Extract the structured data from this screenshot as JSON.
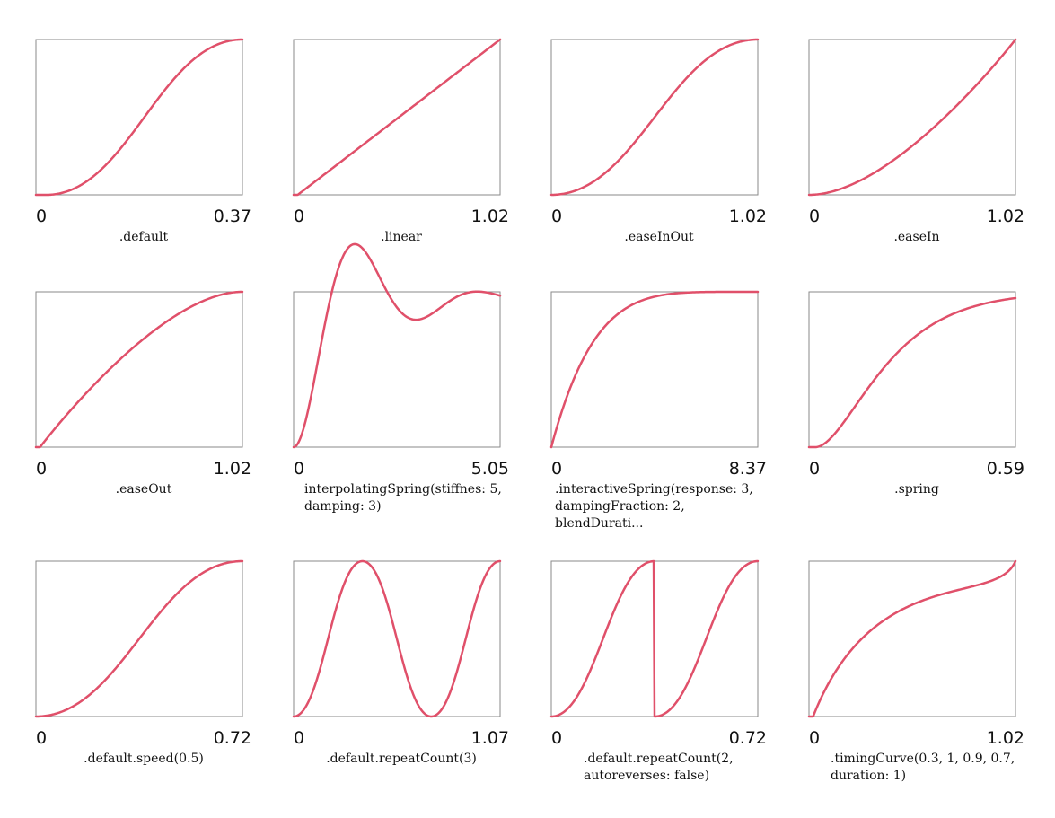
{
  "chart_data": [
    {
      "type": "line",
      "title": ".default",
      "x_min_label": "0",
      "x_max_label": "0.37",
      "curve": "default",
      "ylim": [
        0,
        1
      ]
    },
    {
      "type": "line",
      "title": ".linear",
      "x_min_label": "0",
      "x_max_label": "1.02",
      "curve": "linear",
      "ylim": [
        0,
        1
      ]
    },
    {
      "type": "line",
      "title": ".easeInOut",
      "x_min_label": "0",
      "x_max_label": "1.02",
      "curve": "easeInOut",
      "ylim": [
        0,
        1
      ]
    },
    {
      "type": "line",
      "title": ".easeIn",
      "x_min_label": "0",
      "x_max_label": "1.02",
      "curve": "easeIn",
      "ylim": [
        0,
        1
      ]
    },
    {
      "type": "line",
      "title": ".easeOut",
      "x_min_label": "0",
      "x_max_label": "1.02",
      "curve": "easeOut",
      "ylim": [
        0,
        1
      ]
    },
    {
      "type": "line",
      "title": "interpolatingSpring(stiffnes: 5, damping: 3)",
      "x_min_label": "0",
      "x_max_label": "5.05",
      "curve": "interpolatingSpring",
      "ylim": [
        0,
        1.05
      ]
    },
    {
      "type": "line",
      "title": ".interactiveSpring(response: 3, dampingFraction: 2, blendDurati...",
      "x_min_label": "0",
      "x_max_label": "8.37",
      "curve": "interactiveSpring",
      "ylim": [
        0,
        1
      ]
    },
    {
      "type": "line",
      "title": ".spring",
      "x_min_label": "0",
      "x_max_label": "0.59",
      "curve": "spring",
      "ylim": [
        0,
        1
      ]
    },
    {
      "type": "line",
      "title": ".default.speed(0.5)",
      "x_min_label": "0",
      "x_max_label": "0.72",
      "curve": "defaultSpeed",
      "ylim": [
        0,
        1
      ]
    },
    {
      "type": "line",
      "title": ".default.repeatCount(3)",
      "x_min_label": "0",
      "x_max_label": "1.07",
      "curve": "repeatCount3",
      "ylim": [
        0,
        1
      ]
    },
    {
      "type": "line",
      "title": ".default.repeatCount(2, autoreverses: false)",
      "x_min_label": "0",
      "x_max_label": "0.72",
      "curve": "repeatCount2",
      "ylim": [
        0,
        1
      ]
    },
    {
      "type": "line",
      "title": ".timingCurve(0.3, 1, 0.9, 0.7, duration: 1)",
      "x_min_label": "0",
      "x_max_label": "1.02",
      "curve": "timingCurve",
      "ylim": [
        0,
        1
      ]
    }
  ],
  "colors": {
    "curve": "#e0506a",
    "frame": "#8a8a8a",
    "text": "#111111"
  }
}
